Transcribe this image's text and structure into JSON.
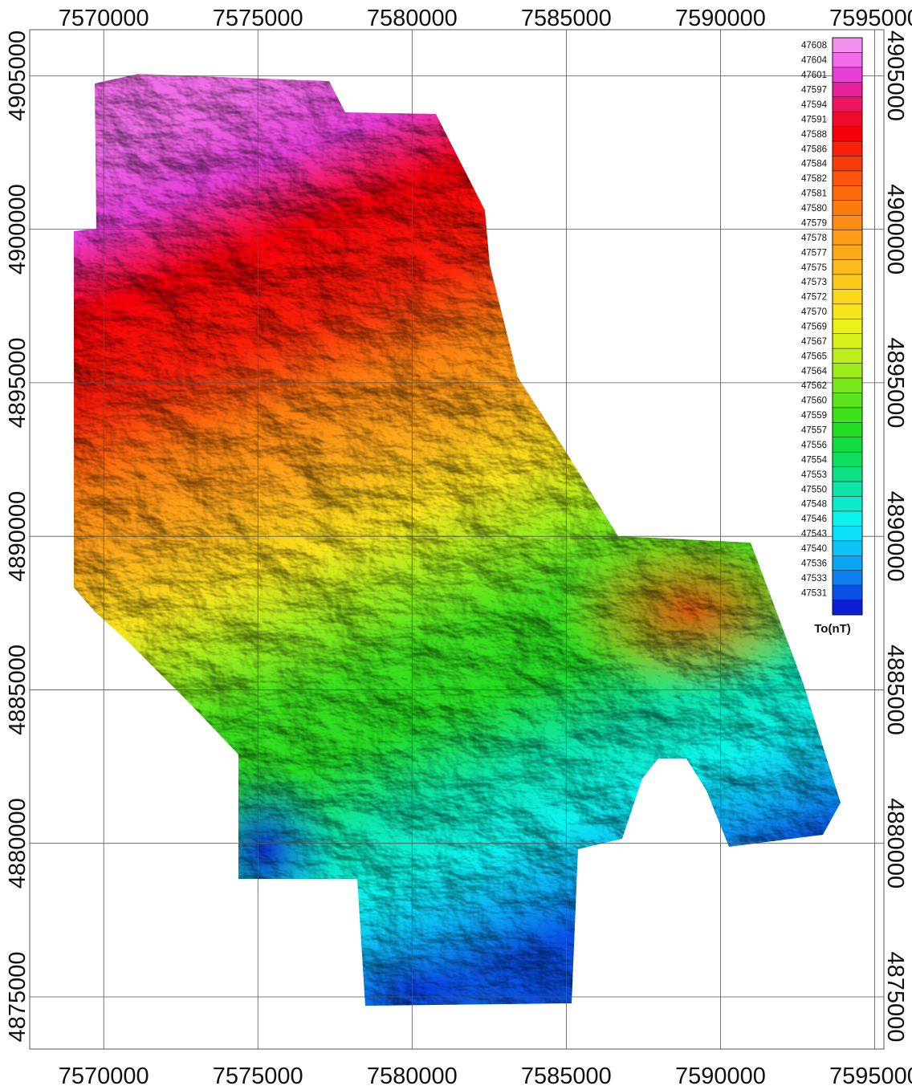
{
  "map": {
    "x_ticks": [
      "7570000",
      "7575000",
      "7580000",
      "7585000",
      "7590000",
      "7595000"
    ],
    "y_ticks": [
      "4905000",
      "4900000",
      "4895000",
      "4890000",
      "4885000",
      "4880000",
      "4875000"
    ],
    "x_range": [
      7567600,
      7595300
    ],
    "y_range": [
      4873300,
      4906500
    ],
    "grid": true
  },
  "legend": {
    "title": "To(nT)",
    "placement": "top-right",
    "entries": [
      {
        "value": "47608",
        "color": "#f590f0"
      },
      {
        "value": "47604",
        "color": "#f06ce8"
      },
      {
        "value": "47601",
        "color": "#e83ed8"
      },
      {
        "value": "47597",
        "color": "#e8209a"
      },
      {
        "value": "47594",
        "color": "#ec1660"
      },
      {
        "value": "47591",
        "color": "#f00a2a"
      },
      {
        "value": "47588",
        "color": "#f5000a"
      },
      {
        "value": "47586",
        "color": "#f8200a"
      },
      {
        "value": "47584",
        "color": "#fa3c0a"
      },
      {
        "value": "47582",
        "color": "#fb540c"
      },
      {
        "value": "47581",
        "color": "#fc6a0e"
      },
      {
        "value": "47580",
        "color": "#fc7c10"
      },
      {
        "value": "47579",
        "color": "#fc8c14"
      },
      {
        "value": "47578",
        "color": "#fc9c18"
      },
      {
        "value": "47577",
        "color": "#fcaa1a"
      },
      {
        "value": "47575",
        "color": "#fcba1c"
      },
      {
        "value": "47573",
        "color": "#fcc81c"
      },
      {
        "value": "47572",
        "color": "#fcd81c"
      },
      {
        "value": "47570",
        "color": "#f8e41c"
      },
      {
        "value": "47569",
        "color": "#eef01c"
      },
      {
        "value": "47567",
        "color": "#d8f01c"
      },
      {
        "value": "47565",
        "color": "#bcee1c"
      },
      {
        "value": "47564",
        "color": "#9cec1c"
      },
      {
        "value": "47562",
        "color": "#7ce81c"
      },
      {
        "value": "47560",
        "color": "#5ce41c"
      },
      {
        "value": "47559",
        "color": "#3ee01c"
      },
      {
        "value": "47557",
        "color": "#22dc24"
      },
      {
        "value": "47556",
        "color": "#10dc40"
      },
      {
        "value": "47554",
        "color": "#0cde60"
      },
      {
        "value": "47553",
        "color": "#0ce084"
      },
      {
        "value": "47550",
        "color": "#0ce6aa"
      },
      {
        "value": "47548",
        "color": "#0ceccc"
      },
      {
        "value": "47546",
        "color": "#0cf2ee"
      },
      {
        "value": "47543",
        "color": "#0ce0f8"
      },
      {
        "value": "47540",
        "color": "#0cc4f8"
      },
      {
        "value": "47536",
        "color": "#0ca4f4"
      },
      {
        "value": "47533",
        "color": "#0c80ee"
      },
      {
        "value": "47531",
        "color": "#0a50e4"
      },
      {
        "value": "",
        "color": "#0a1ed8"
      }
    ]
  },
  "colors": {
    "grid": "#555555",
    "frame": "#555555",
    "background": "#ffffff"
  }
}
